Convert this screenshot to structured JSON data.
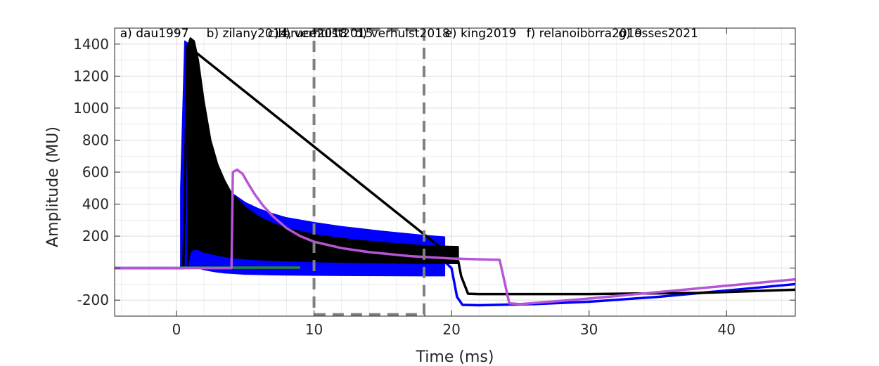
{
  "chart_data": {
    "type": "line",
    "xlabel": "Time (ms)",
    "ylabel": "Amplitude (MU)",
    "xlim": [
      -4.5,
      45
    ],
    "ylim": [
      -300,
      1500
    ],
    "xticks": [
      0,
      10,
      20,
      30,
      40
    ],
    "yticks": [
      -200,
      0,
      200,
      400,
      600,
      800,
      1000,
      1200,
      1400
    ],
    "ytick_labels": [
      "-200",
      "",
      "200",
      "400",
      "600",
      "800",
      "1000",
      "1200",
      "1400"
    ],
    "grid": true,
    "panel_labels": [
      {
        "text": "a) dau1997",
        "x": 0.8
      },
      {
        "text": "b) zilany2014,",
        "x": 13.5
      },
      {
        "text": "b) verhulst2015",
        "x": 24
      },
      {
        "text": "c) bruce2018",
        "x": 22.5
      },
      {
        "text": "d) verhulst2018",
        "x": 35.3
      },
      {
        "text": "e) king2019",
        "x": 48.5
      },
      {
        "text": "f) relanoiborra2019",
        "x": 60.5
      },
      {
        "text": "g) osses2021",
        "x": 74
      }
    ],
    "stimulus_window": {
      "x": [
        10,
        18
      ],
      "y": [
        -290,
        1490
      ]
    },
    "series": [
      {
        "name": "",
        "color": "#0000ff",
        "kind": "band",
        "x": [
          0.3,
          0.6,
          0.9,
          1.2,
          1.6,
          2.0,
          2.5,
          3.0,
          3.5,
          4.0,
          5.0,
          6.0,
          7.0,
          8.0,
          10.0,
          12.0,
          15.0,
          18.0,
          19.5
        ],
        "upper": [
          500,
          1420,
          1400,
          1300,
          1050,
          850,
          700,
          590,
          520,
          470,
          410,
          370,
          340,
          315,
          285,
          260,
          230,
          205,
          195
        ],
        "lower": [
          0,
          0,
          5,
          10,
          0,
          -10,
          -18,
          -25,
          -30,
          -33,
          -38,
          -40,
          -42,
          -43,
          -45,
          -46,
          -47,
          -48,
          -48
        ]
      },
      {
        "name": "",
        "color": "#0000ff",
        "kind": "line",
        "x": [
          -4.5,
          0.2,
          19.5,
          20.0,
          20.4,
          20.8,
          22,
          26,
          30,
          35,
          40,
          45
        ],
        "y": [
          0,
          0,
          40,
          0,
          -180,
          -230,
          -232,
          -225,
          -210,
          -180,
          -140,
          -100
        ]
      },
      {
        "name": "",
        "color": "#000000",
        "kind": "band",
        "x": [
          0.8,
          1.0,
          1.3,
          1.6,
          2.0,
          2.5,
          3.0,
          3.5,
          4.0,
          5.0,
          6.0,
          7.0,
          8.0,
          10.0,
          12.0,
          15.0,
          18.0,
          20.5
        ],
        "upper": [
          1390,
          1440,
          1420,
          1300,
          1050,
          800,
          650,
          550,
          470,
          380,
          320,
          280,
          250,
          210,
          185,
          160,
          140,
          135
        ],
        "lower": [
          0,
          100,
          120,
          115,
          100,
          90,
          80,
          72,
          66,
          58,
          52,
          48,
          45,
          40,
          37,
          33,
          30,
          28
        ]
      },
      {
        "name": "",
        "color": "#000000",
        "kind": "line",
        "x": [
          -4.5,
          0.3,
          0.5,
          0.8,
          20.5,
          20.7,
          21.2,
          22,
          30,
          38,
          45
        ],
        "y": [
          0,
          0,
          0,
          1390,
          40,
          -50,
          -160,
          -162,
          -162,
          -155,
          -135
        ]
      },
      {
        "name": "",
        "color": "#228b22",
        "kind": "line",
        "x": [
          0.3,
          9.0
        ],
        "y": [
          3,
          3
        ]
      },
      {
        "name": "",
        "color": "#b655d6",
        "kind": "line",
        "x": [
          -4.5,
          4.0,
          4.1,
          4.4,
          4.8,
          5.2,
          5.7,
          6.3,
          7.0,
          8.0,
          9.0,
          10.0,
          12.0,
          14.0,
          17.0,
          20.0,
          22.0,
          23.5,
          24.2,
          25.0,
          30,
          35,
          40,
          45
        ],
        "y": [
          0,
          0,
          600,
          615,
          590,
          530,
          460,
          390,
          325,
          250,
          200,
          165,
          125,
          100,
          75,
          60,
          55,
          52,
          -220,
          -225,
          -190,
          -150,
          -110,
          -70
        ]
      }
    ]
  }
}
